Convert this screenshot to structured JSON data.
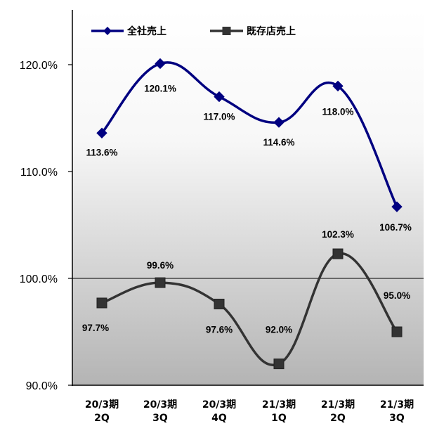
{
  "chart_data": {
    "type": "line",
    "categories": [
      [
        "20/3期",
        "2Q"
      ],
      [
        "20/3期",
        "3Q"
      ],
      [
        "20/3期",
        "4Q"
      ],
      [
        "21/3期",
        "1Q"
      ],
      [
        "21/3期",
        "2Q"
      ],
      [
        "21/3期",
        "3Q"
      ]
    ],
    "series": [
      {
        "name": "全社売上",
        "values": [
          113.6,
          120.1,
          117.0,
          114.6,
          118.0,
          106.7
        ],
        "labels": [
          "113.6%",
          "120.1%",
          "117.0%",
          "114.6%",
          "118.0%",
          "106.7%"
        ],
        "color": "#000080",
        "marker": "diamond"
      },
      {
        "name": "既存店売上",
        "values": [
          97.7,
          99.6,
          97.6,
          92.0,
          102.3,
          95.0
        ],
        "labels": [
          "97.7%",
          "99.6%",
          "97.6%",
          "92.0%",
          "102.3%",
          "95.0%"
        ],
        "color": "#333333",
        "marker": "square"
      }
    ],
    "yticks": [
      90.0,
      100.0,
      110.0,
      120.0
    ],
    "ytick_labels": [
      "90.0%",
      "100.0%",
      "110.0%",
      "120.0%"
    ],
    "ylim": [
      90,
      125
    ],
    "reference_line": 100.0,
    "grid": false,
    "legend_position": "top-left",
    "background": "vertical gradient white to gray"
  }
}
